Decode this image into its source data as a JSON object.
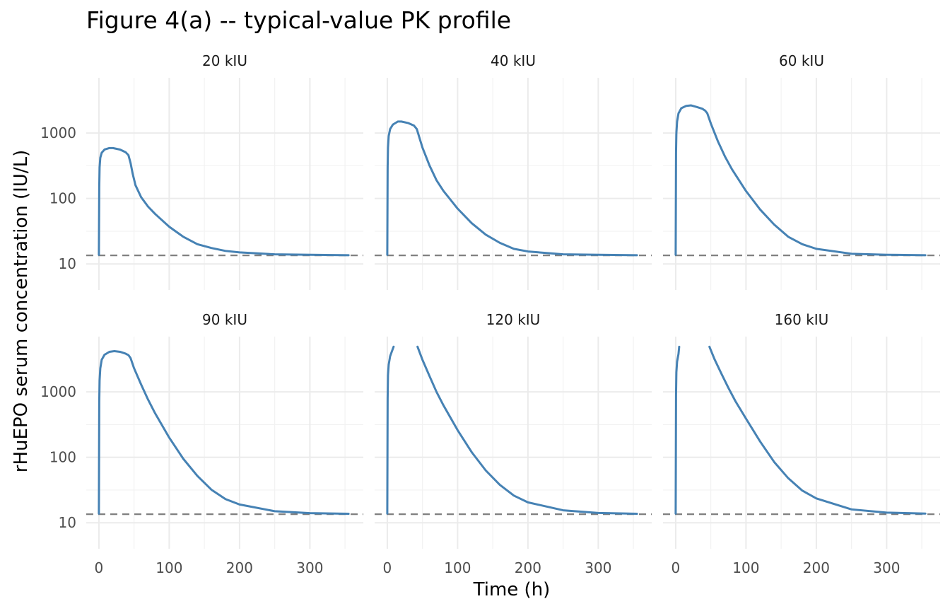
{
  "chart_data": {
    "type": "line",
    "title": "Figure 4(a) -- typical-value PK profile",
    "xlabel": "Time (h)",
    "ylabel": "rHuEPO serum concentration (IU/L)",
    "x_scale": "linear",
    "y_scale": "log10",
    "xlim": [
      -18,
      376
    ],
    "ylim": [
      4,
      7000
    ],
    "x_ticks": [
      0,
      100,
      200,
      300
    ],
    "x_tick_labels": [
      "0",
      "100",
      "200",
      "300"
    ],
    "y_ticks": [
      10,
      100,
      1000
    ],
    "y_tick_labels": [
      "10",
      "100",
      "1000"
    ],
    "grid": true,
    "legend": "none",
    "facet_layout": {
      "rows": 2,
      "cols": 3
    },
    "colors": {
      "line": "#4682b4",
      "reference": "#7f7f7f"
    },
    "reference_line": {
      "y": 13.5,
      "style": "dashed"
    },
    "panels": [
      {
        "label": "20 kIU",
        "series": [
          {
            "points": [
              [
                0,
                13.8
              ],
              [
                0.5,
                150
              ],
              [
                1,
                300
              ],
              [
                2,
                420
              ],
              [
                4,
                500
              ],
              [
                8,
                560
              ],
              [
                15,
                590
              ],
              [
                20,
                590
              ],
              [
                30,
                560
              ],
              [
                38,
                510
              ],
              [
                42,
                460
              ],
              [
                45,
                350
              ],
              [
                48,
                240
              ],
              [
                52,
                160
              ],
              [
                60,
                105
              ],
              [
                70,
                75
              ],
              [
                80,
                58
              ],
              [
                100,
                37
              ],
              [
                120,
                26
              ],
              [
                140,
                20
              ],
              [
                160,
                17.5
              ],
              [
                180,
                15.8
              ],
              [
                200,
                15
              ],
              [
                250,
                14
              ],
              [
                300,
                13.8
              ],
              [
                355,
                13.6
              ]
            ]
          }
        ]
      },
      {
        "label": "40 kIU",
        "series": [
          {
            "points": [
              [
                0,
                13.8
              ],
              [
                0.5,
                300
              ],
              [
                1,
                600
              ],
              [
                2,
                900
              ],
              [
                4,
                1150
              ],
              [
                8,
                1350
              ],
              [
                15,
                1500
              ],
              [
                20,
                1500
              ],
              [
                30,
                1420
              ],
              [
                38,
                1300
              ],
              [
                42,
                1150
              ],
              [
                45,
                900
              ],
              [
                50,
                600
              ],
              [
                60,
                320
              ],
              [
                70,
                190
              ],
              [
                80,
                130
              ],
              [
                100,
                70
              ],
              [
                120,
                42
              ],
              [
                140,
                28
              ],
              [
                160,
                21
              ],
              [
                180,
                17
              ],
              [
                200,
                15.5
              ],
              [
                250,
                14
              ],
              [
                300,
                13.8
              ],
              [
                355,
                13.6
              ]
            ]
          }
        ]
      },
      {
        "label": "60 kIU",
        "series": [
          {
            "points": [
              [
                0,
                13.8
              ],
              [
                0.5,
                500
              ],
              [
                1,
                1000
              ],
              [
                2,
                1500
              ],
              [
                4,
                2000
              ],
              [
                8,
                2400
              ],
              [
                15,
                2600
              ],
              [
                22,
                2650
              ],
              [
                30,
                2500
              ],
              [
                38,
                2350
              ],
              [
                42,
                2200
              ],
              [
                45,
                2000
              ],
              [
                50,
                1400
              ],
              [
                60,
                750
              ],
              [
                70,
                440
              ],
              [
                80,
                280
              ],
              [
                100,
                130
              ],
              [
                120,
                68
              ],
              [
                140,
                40
              ],
              [
                160,
                26
              ],
              [
                180,
                20
              ],
              [
                200,
                17
              ],
              [
                250,
                14.3
              ],
              [
                300,
                13.8
              ],
              [
                355,
                13.6
              ]
            ]
          }
        ]
      },
      {
        "label": "90 kIU",
        "series": [
          {
            "points": [
              [
                0,
                13.8
              ],
              [
                0.5,
                700
              ],
              [
                1,
                1500
              ],
              [
                2,
                2300
              ],
              [
                4,
                3100
              ],
              [
                8,
                3700
              ],
              [
                15,
                4100
              ],
              [
                22,
                4200
              ],
              [
                30,
                4100
              ],
              [
                38,
                3850
              ],
              [
                42,
                3650
              ],
              [
                45,
                3300
              ],
              [
                50,
                2300
              ],
              [
                60,
                1300
              ],
              [
                70,
                760
              ],
              [
                80,
                470
              ],
              [
                100,
                200
              ],
              [
                120,
                95
              ],
              [
                140,
                52
              ],
              [
                160,
                32
              ],
              [
                180,
                23
              ],
              [
                200,
                19
              ],
              [
                250,
                15
              ],
              [
                300,
                14
              ],
              [
                355,
                13.7
              ]
            ]
          }
        ]
      },
      {
        "label": "120 kIU",
        "series": [
          {
            "points": [
              [
                0,
                13.8
              ],
              [
                0.5,
                800
              ],
              [
                1,
                1800
              ],
              [
                2,
                2600
              ],
              [
                4,
                3500
              ],
              [
                8,
                4600
              ],
              [
                9,
                4900
              ]
            ]
          },
          {
            "points": [
              [
                43,
                4900
              ],
              [
                50,
                3100
              ],
              [
                60,
                1750
              ],
              [
                70,
                1000
              ],
              [
                80,
                620
              ],
              [
                100,
                260
              ],
              [
                120,
                120
              ],
              [
                140,
                63
              ],
              [
                160,
                38
              ],
              [
                180,
                26
              ],
              [
                200,
                20.5
              ],
              [
                250,
                15.5
              ],
              [
                300,
                14.1
              ],
              [
                355,
                13.7
              ]
            ]
          }
        ]
      },
      {
        "label": "160 kIU",
        "series": [
          {
            "points": [
              [
                0,
                13.8
              ],
              [
                0.5,
                900
              ],
              [
                1,
                2000
              ],
              [
                2,
                2900
              ],
              [
                4,
                3800
              ],
              [
                5,
                4900
              ]
            ]
          },
          {
            "points": [
              [
                48,
                4900
              ],
              [
                55,
                3200
              ],
              [
                65,
                1900
              ],
              [
                75,
                1150
              ],
              [
                85,
                720
              ],
              [
                100,
                390
              ],
              [
                120,
                175
              ],
              [
                140,
                85
              ],
              [
                160,
                48
              ],
              [
                180,
                31
              ],
              [
                200,
                23.5
              ],
              [
                250,
                16
              ],
              [
                300,
                14.3
              ],
              [
                355,
                13.8
              ]
            ]
          }
        ]
      }
    ]
  }
}
